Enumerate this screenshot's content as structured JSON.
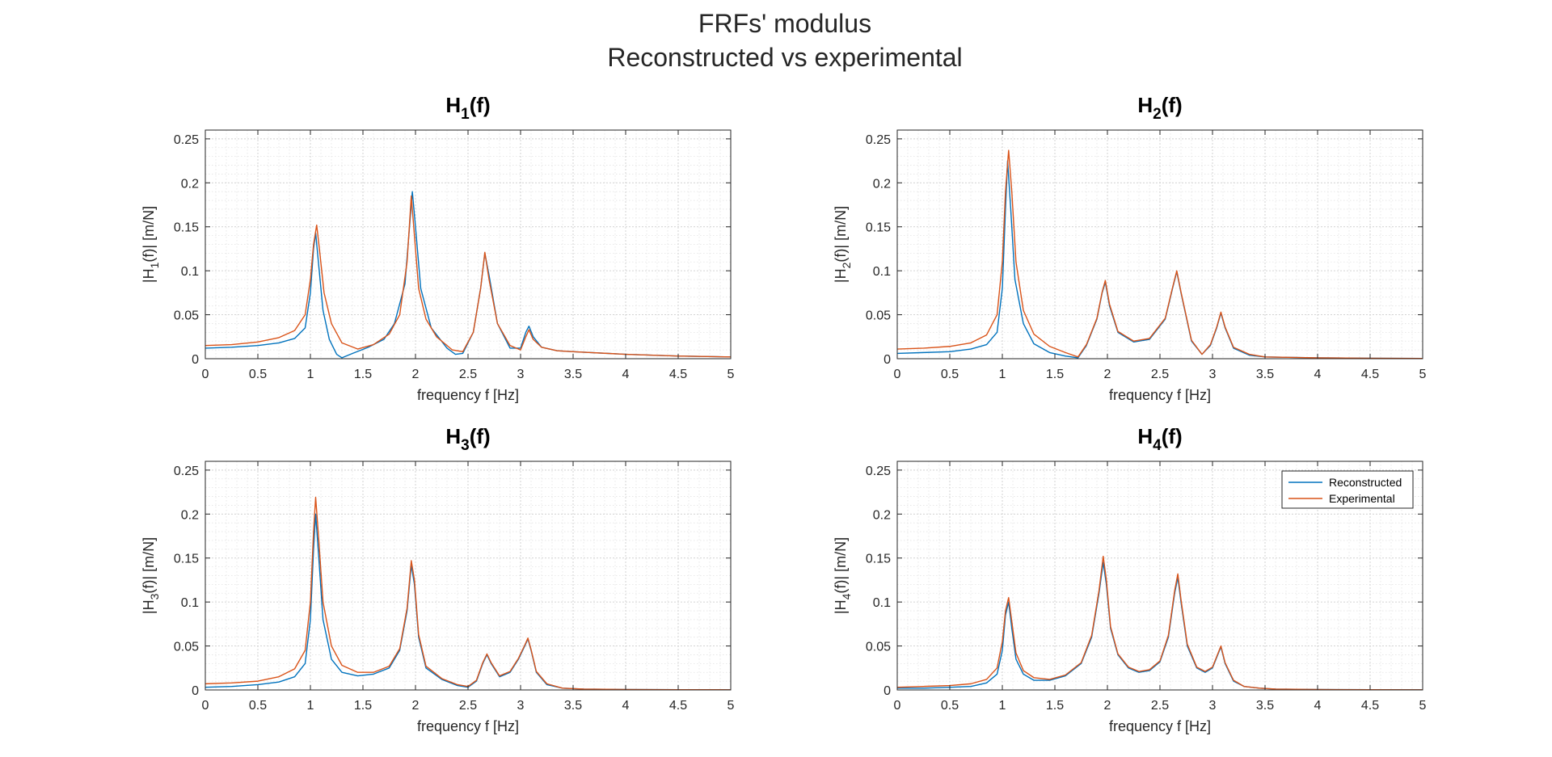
{
  "figure": {
    "title_line1": "FRFs' modulus",
    "title_line2": "Reconstructed vs experimental"
  },
  "colors": {
    "reconstructed": "#0072BD",
    "experimental": "#D95319",
    "grid": "#e3e3e3",
    "axis": "#262626"
  },
  "legend": {
    "placement": "top-right",
    "panel_index": 3,
    "entries": [
      "Reconstructed",
      "Experimental"
    ]
  },
  "chart_data": [
    {
      "type": "line",
      "title_main": "H",
      "title_sub": "1",
      "title_suffix": "(f)",
      "xlabel": "frequency f [Hz]",
      "ylabel_pre": "|H",
      "ylabel_sub": "1",
      "ylabel_post": "(f)|   [m/N]",
      "xlim": [
        0,
        5
      ],
      "ylim": [
        0,
        0.26
      ],
      "xticks": [
        0,
        0.5,
        1,
        1.5,
        2,
        2.5,
        3,
        3.5,
        4,
        4.5,
        5
      ],
      "xtick_labels": [
        "0",
        "0.5",
        "1",
        "1.5",
        "2",
        "2.5",
        "3",
        "3.5",
        "4",
        "4.5",
        "5"
      ],
      "yticks": [
        0,
        0.05,
        0.1,
        0.15,
        0.2,
        0.25
      ],
      "ytick_labels": [
        "0",
        "0.05",
        "0.1",
        "0.15",
        "0.2",
        "0.25"
      ],
      "grid": true,
      "series": [
        {
          "name": "Reconstructed",
          "x": [
            0,
            0.25,
            0.5,
            0.7,
            0.85,
            0.95,
            1.0,
            1.03,
            1.05,
            1.08,
            1.12,
            1.18,
            1.25,
            1.3,
            1.4,
            1.55,
            1.7,
            1.8,
            1.9,
            1.95,
            1.97,
            2.0,
            2.05,
            2.15,
            2.3,
            2.38,
            2.45,
            2.55,
            2.62,
            2.66,
            2.7,
            2.78,
            2.9,
            3.0,
            3.05,
            3.08,
            3.12,
            3.2,
            3.35,
            3.5,
            4.0,
            4.5,
            5.0
          ],
          "y": [
            0.012,
            0.013,
            0.015,
            0.018,
            0.023,
            0.035,
            0.075,
            0.125,
            0.143,
            0.105,
            0.055,
            0.022,
            0.005,
            0.001,
            0.006,
            0.013,
            0.022,
            0.04,
            0.085,
            0.16,
            0.19,
            0.15,
            0.08,
            0.035,
            0.012,
            0.005,
            0.006,
            0.03,
            0.08,
            0.12,
            0.095,
            0.04,
            0.012,
            0.012,
            0.03,
            0.037,
            0.025,
            0.013,
            0.009,
            0.008,
            0.005,
            0.003,
            0.002
          ]
        },
        {
          "name": "Experimental",
          "x": [
            0,
            0.25,
            0.5,
            0.7,
            0.85,
            0.95,
            1.0,
            1.03,
            1.06,
            1.09,
            1.13,
            1.2,
            1.3,
            1.45,
            1.6,
            1.75,
            1.85,
            1.92,
            1.96,
            1.99,
            2.03,
            2.1,
            2.2,
            2.35,
            2.45,
            2.55,
            2.62,
            2.66,
            2.7,
            2.78,
            2.9,
            3.0,
            3.05,
            3.08,
            3.12,
            3.2,
            3.35,
            3.5,
            4.0,
            4.5,
            5.0
          ],
          "y": [
            0.015,
            0.016,
            0.019,
            0.024,
            0.032,
            0.05,
            0.09,
            0.13,
            0.152,
            0.12,
            0.075,
            0.04,
            0.018,
            0.011,
            0.016,
            0.028,
            0.05,
            0.11,
            0.185,
            0.14,
            0.08,
            0.045,
            0.025,
            0.01,
            0.008,
            0.03,
            0.08,
            0.121,
            0.09,
            0.04,
            0.015,
            0.01,
            0.025,
            0.033,
            0.022,
            0.013,
            0.009,
            0.008,
            0.005,
            0.003,
            0.002
          ]
        }
      ]
    },
    {
      "type": "line",
      "title_main": "H",
      "title_sub": "2",
      "title_suffix": "(f)",
      "xlabel": "frequency f [Hz]",
      "ylabel_pre": "|H",
      "ylabel_sub": "2",
      "ylabel_post": "(f)|   [m/N]",
      "xlim": [
        0,
        5
      ],
      "ylim": [
        0,
        0.26
      ],
      "xticks": [
        0,
        0.5,
        1,
        1.5,
        2,
        2.5,
        3,
        3.5,
        4,
        4.5,
        5
      ],
      "xtick_labels": [
        "0",
        "0.5",
        "1",
        "1.5",
        "2",
        "2.5",
        "3",
        "3.5",
        "4",
        "4.5",
        "5"
      ],
      "yticks": [
        0,
        0.05,
        0.1,
        0.15,
        0.2,
        0.25
      ],
      "ytick_labels": [
        "0",
        "0.05",
        "0.1",
        "0.15",
        "0.2",
        "0.25"
      ],
      "grid": true,
      "series": [
        {
          "name": "Reconstructed",
          "x": [
            0,
            0.25,
            0.5,
            0.7,
            0.85,
            0.95,
            1.0,
            1.03,
            1.05,
            1.08,
            1.12,
            1.2,
            1.3,
            1.45,
            1.6,
            1.72,
            1.8,
            1.9,
            1.95,
            1.98,
            2.02,
            2.1,
            2.25,
            2.4,
            2.55,
            2.62,
            2.66,
            2.7,
            2.8,
            2.9,
            2.98,
            3.04,
            3.08,
            3.12,
            3.2,
            3.35,
            3.5,
            4.0,
            4.5,
            5.0
          ],
          "y": [
            0.006,
            0.007,
            0.008,
            0.011,
            0.016,
            0.03,
            0.08,
            0.17,
            0.225,
            0.17,
            0.09,
            0.04,
            0.017,
            0.007,
            0.003,
            0.001,
            0.015,
            0.045,
            0.075,
            0.087,
            0.06,
            0.03,
            0.019,
            0.022,
            0.045,
            0.08,
            0.099,
            0.075,
            0.02,
            0.005,
            0.015,
            0.035,
            0.052,
            0.035,
            0.012,
            0.004,
            0.002,
            0.001,
            0.0005,
            0.0003
          ]
        },
        {
          "name": "Experimental",
          "x": [
            0,
            0.25,
            0.5,
            0.7,
            0.85,
            0.95,
            1.0,
            1.03,
            1.06,
            1.09,
            1.13,
            1.2,
            1.3,
            1.45,
            1.6,
            1.72,
            1.8,
            1.9,
            1.95,
            1.98,
            2.02,
            2.1,
            2.25,
            2.4,
            2.55,
            2.62,
            2.66,
            2.7,
            2.8,
            2.9,
            2.98,
            3.04,
            3.08,
            3.12,
            3.2,
            3.35,
            3.5,
            4.0,
            4.5,
            5.0
          ],
          "y": [
            0.011,
            0.012,
            0.014,
            0.018,
            0.027,
            0.05,
            0.11,
            0.19,
            0.237,
            0.19,
            0.11,
            0.055,
            0.028,
            0.014,
            0.007,
            0.002,
            0.016,
            0.046,
            0.076,
            0.089,
            0.062,
            0.031,
            0.02,
            0.023,
            0.046,
            0.081,
            0.1,
            0.076,
            0.021,
            0.005,
            0.016,
            0.036,
            0.053,
            0.036,
            0.013,
            0.005,
            0.002,
            0.001,
            0.0005,
            0.0003
          ]
        }
      ]
    },
    {
      "type": "line",
      "title_main": "H",
      "title_sub": "3",
      "title_suffix": "(f)",
      "xlabel": "frequency f [Hz]",
      "ylabel_pre": "|H",
      "ylabel_sub": "3",
      "ylabel_post": "(f)|   [m/N]",
      "xlim": [
        0,
        5
      ],
      "ylim": [
        0,
        0.26
      ],
      "xticks": [
        0,
        0.5,
        1,
        1.5,
        2,
        2.5,
        3,
        3.5,
        4,
        4.5,
        5
      ],
      "xtick_labels": [
        "0",
        "0.5",
        "1",
        "1.5",
        "2",
        "2.5",
        "3",
        "3.5",
        "4",
        "4.5",
        "5"
      ],
      "yticks": [
        0,
        0.05,
        0.1,
        0.15,
        0.2,
        0.25
      ],
      "ytick_labels": [
        "0",
        "0.05",
        "0.1",
        "0.15",
        "0.2",
        "0.25"
      ],
      "grid": true,
      "series": [
        {
          "name": "Reconstructed",
          "x": [
            0,
            0.25,
            0.5,
            0.7,
            0.85,
            0.95,
            1.0,
            1.03,
            1.05,
            1.08,
            1.12,
            1.2,
            1.3,
            1.45,
            1.6,
            1.75,
            1.85,
            1.92,
            1.96,
            1.99,
            2.03,
            2.1,
            2.25,
            2.4,
            2.5,
            2.58,
            2.64,
            2.68,
            2.72,
            2.8,
            2.9,
            2.98,
            3.04,
            3.07,
            3.1,
            3.15,
            3.25,
            3.4,
            3.6,
            4.0,
            4.5,
            5.0
          ],
          "y": [
            0.003,
            0.004,
            0.006,
            0.009,
            0.015,
            0.03,
            0.08,
            0.16,
            0.2,
            0.15,
            0.08,
            0.035,
            0.02,
            0.016,
            0.018,
            0.025,
            0.045,
            0.09,
            0.142,
            0.12,
            0.06,
            0.025,
            0.012,
            0.005,
            0.003,
            0.01,
            0.03,
            0.04,
            0.03,
            0.015,
            0.02,
            0.035,
            0.05,
            0.058,
            0.045,
            0.02,
            0.006,
            0.002,
            0.001,
            0.0005,
            0.0003,
            0.0002
          ]
        },
        {
          "name": "Experimental",
          "x": [
            0,
            0.25,
            0.5,
            0.7,
            0.85,
            0.95,
            1.0,
            1.03,
            1.05,
            1.08,
            1.12,
            1.2,
            1.3,
            1.45,
            1.6,
            1.75,
            1.85,
            1.92,
            1.96,
            1.99,
            2.03,
            2.1,
            2.25,
            2.4,
            2.5,
            2.58,
            2.64,
            2.68,
            2.72,
            2.8,
            2.9,
            2.98,
            3.04,
            3.07,
            3.1,
            3.15,
            3.25,
            3.4,
            3.6,
            4.0,
            4.5,
            5.0
          ],
          "y": [
            0.007,
            0.008,
            0.01,
            0.015,
            0.024,
            0.045,
            0.1,
            0.18,
            0.219,
            0.17,
            0.1,
            0.05,
            0.028,
            0.02,
            0.02,
            0.027,
            0.047,
            0.093,
            0.147,
            0.125,
            0.063,
            0.027,
            0.013,
            0.006,
            0.004,
            0.011,
            0.031,
            0.041,
            0.031,
            0.016,
            0.021,
            0.036,
            0.051,
            0.059,
            0.046,
            0.021,
            0.007,
            0.002,
            0.001,
            0.0005,
            0.0003,
            0.0002
          ]
        }
      ]
    },
    {
      "type": "line",
      "title_main": "H",
      "title_sub": "4",
      "title_suffix": "(f)",
      "xlabel": "frequency f [Hz]",
      "ylabel_pre": "|H",
      "ylabel_sub": "4",
      "ylabel_post": "(f)|   [m/N]",
      "xlim": [
        0,
        5
      ],
      "ylim": [
        0,
        0.26
      ],
      "xticks": [
        0,
        0.5,
        1,
        1.5,
        2,
        2.5,
        3,
        3.5,
        4,
        4.5,
        5
      ],
      "xtick_labels": [
        "0",
        "0.5",
        "1",
        "1.5",
        "2",
        "2.5",
        "3",
        "3.5",
        "4",
        "4.5",
        "5"
      ],
      "yticks": [
        0,
        0.05,
        0.1,
        0.15,
        0.2,
        0.25
      ],
      "ytick_labels": [
        "0",
        "0.05",
        "0.1",
        "0.15",
        "0.2",
        "0.25"
      ],
      "grid": true,
      "series": [
        {
          "name": "Reconstructed",
          "x": [
            0,
            0.25,
            0.5,
            0.7,
            0.85,
            0.95,
            1.0,
            1.03,
            1.06,
            1.09,
            1.13,
            1.2,
            1.3,
            1.45,
            1.6,
            1.75,
            1.85,
            1.92,
            1.96,
            1.99,
            2.03,
            2.1,
            2.2,
            2.3,
            2.4,
            2.5,
            2.58,
            2.64,
            2.67,
            2.7,
            2.76,
            2.85,
            2.93,
            3.0,
            3.05,
            3.08,
            3.12,
            3.2,
            3.3,
            3.45,
            3.6,
            4.0,
            4.5,
            5.0
          ],
          "y": [
            0.002,
            0.002,
            0.003,
            0.004,
            0.008,
            0.018,
            0.045,
            0.085,
            0.1,
            0.07,
            0.035,
            0.018,
            0.011,
            0.011,
            0.016,
            0.03,
            0.06,
            0.11,
            0.145,
            0.12,
            0.07,
            0.04,
            0.025,
            0.02,
            0.022,
            0.032,
            0.06,
            0.11,
            0.128,
            0.1,
            0.05,
            0.025,
            0.02,
            0.025,
            0.04,
            0.049,
            0.03,
            0.01,
            0.004,
            0.002,
            0.001,
            0.0005,
            0.0003,
            0.0002
          ]
        },
        {
          "name": "Experimental",
          "x": [
            0,
            0.25,
            0.5,
            0.7,
            0.85,
            0.95,
            1.0,
            1.03,
            1.06,
            1.09,
            1.13,
            1.2,
            1.3,
            1.45,
            1.6,
            1.75,
            1.85,
            1.92,
            1.96,
            1.99,
            2.03,
            2.1,
            2.2,
            2.3,
            2.4,
            2.5,
            2.58,
            2.64,
            2.67,
            2.7,
            2.76,
            2.85,
            2.93,
            3.0,
            3.05,
            3.08,
            3.12,
            3.2,
            3.3,
            3.45,
            3.6,
            4.0,
            4.5,
            5.0
          ],
          "y": [
            0.003,
            0.004,
            0.005,
            0.007,
            0.012,
            0.025,
            0.055,
            0.09,
            0.105,
            0.078,
            0.042,
            0.022,
            0.014,
            0.012,
            0.017,
            0.031,
            0.062,
            0.113,
            0.152,
            0.125,
            0.072,
            0.041,
            0.026,
            0.021,
            0.023,
            0.033,
            0.062,
            0.113,
            0.132,
            0.103,
            0.052,
            0.026,
            0.021,
            0.026,
            0.041,
            0.05,
            0.031,
            0.011,
            0.004,
            0.002,
            0.001,
            0.0005,
            0.0003,
            0.0002
          ]
        }
      ]
    }
  ]
}
